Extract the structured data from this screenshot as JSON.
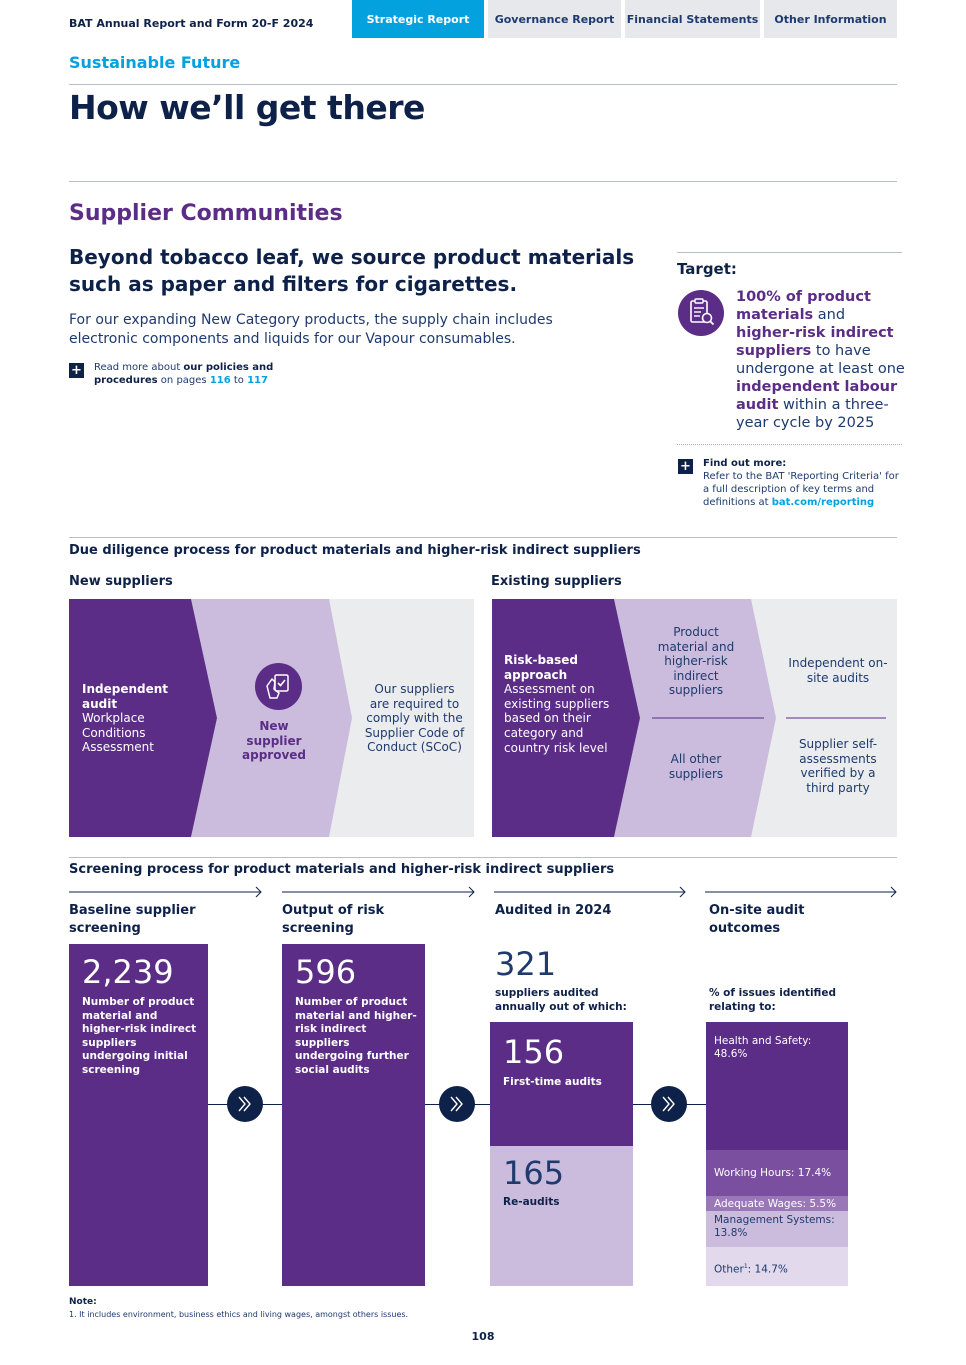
{
  "header": {
    "doc_title": "BAT Annual Report and Form 20-F 2024",
    "tabs": [
      {
        "label": "Strategic Report"
      },
      {
        "label": "Governance Report"
      },
      {
        "label": "Financial Statements"
      },
      {
        "label": "Other Information"
      }
    ]
  },
  "section_label": "Sustainable Future",
  "page_title": "How we’ll get there",
  "sub_heading": "Supplier Communities",
  "lead": "Beyond tobacco leaf, we source product materials such as paper and filters for cigarettes.",
  "body_text": "For our expanding New Category products, the supply chain includes electronic components and liquids for our Vapour consumables.",
  "read_more": {
    "prefix": "Read more about ",
    "bold": "our policies and procedures",
    "middle": " on pages ",
    "page_a": "116",
    "to": " to ",
    "page_b": "117"
  },
  "target": {
    "label": "Target:",
    "icon": "clipboard-search-icon",
    "t1": "100% of product materials",
    "t2": " and ",
    "t3": "higher-risk indirect suppliers",
    "t4": " to have undergone at least one ",
    "t5": "independent labour audit",
    "t6": " within a three-year cycle by 2025"
  },
  "find_out": {
    "title": "Find out more:",
    "text": "Refer to the BAT 'Reporting Criteria' for a full description of key terms and definitions at ",
    "link": "bat.com/reporting"
  },
  "due_diligence": {
    "heading": "Due diligence process for product materials and higher-risk indirect suppliers",
    "new": {
      "heading": "New suppliers",
      "step1_bold": "Independent audit",
      "step1_text": "Workplace Conditions Assessment",
      "step2_icon": "hand-checklist-icon",
      "step2_text": "New supplier approved",
      "step3_text": "Our suppliers are required to comply with the Supplier Code of Conduct (SCoC)"
    },
    "existing": {
      "heading": "Existing suppliers",
      "step1_bold": "Risk-based approach",
      "step1_text": "Assessment on existing suppliers based on their category and country risk level",
      "step2_top": "Product material and higher-risk indirect suppliers",
      "step2_bottom": "All other suppliers",
      "step3_top": "Independent on-site audits",
      "step3_bottom": "Supplier self-assessments verified by a third party"
    }
  },
  "screening": {
    "heading": "Screening process for product materials and higher-risk indirect suppliers",
    "stages": [
      {
        "label": "Baseline supplier screening"
      },
      {
        "label": "Output of risk screening"
      },
      {
        "label": "Audited in 2024"
      },
      {
        "label": "On-site audit outcomes"
      }
    ],
    "baseline": {
      "value": "2,239",
      "desc": "Number of product material and higher-risk indirect suppliers undergoing initial screening"
    },
    "output": {
      "value": "596",
      "desc": "Number of product material and higher-risk indirect suppliers undergoing further social audits"
    },
    "audited": {
      "value": "321",
      "desc": "suppliers audited annually out of which:",
      "first_value": "156",
      "first_label": "First-time audits",
      "re_value": "165",
      "re_label": "Re-audits"
    },
    "outcomes": {
      "intro": "% of issues identified relating to:",
      "items": [
        {
          "label": "Health and Safety:",
          "value": "48.6%",
          "pct": 48.6,
          "color": "#5b2d86"
        },
        {
          "label": "Working Hours:",
          "value": "17.4%",
          "pct": 17.4,
          "color": "#7a4fa0"
        },
        {
          "label": "Adequate Wages:",
          "value": "5.5%",
          "pct": 5.5,
          "color": "#9a78b8"
        },
        {
          "label": "Management Systems:",
          "value": "13.8%",
          "pct": 13.8,
          "color": "#cbbcdd"
        },
        {
          "label": "Other",
          "sup": "1",
          "value": "14.7%",
          "pct": 14.7,
          "color": "#e2d9ec"
        }
      ]
    }
  },
  "note": {
    "label": "Note:",
    "text": "1.    It includes environment, business ethics and living wages, amongst others issues."
  },
  "page_number": "108"
}
